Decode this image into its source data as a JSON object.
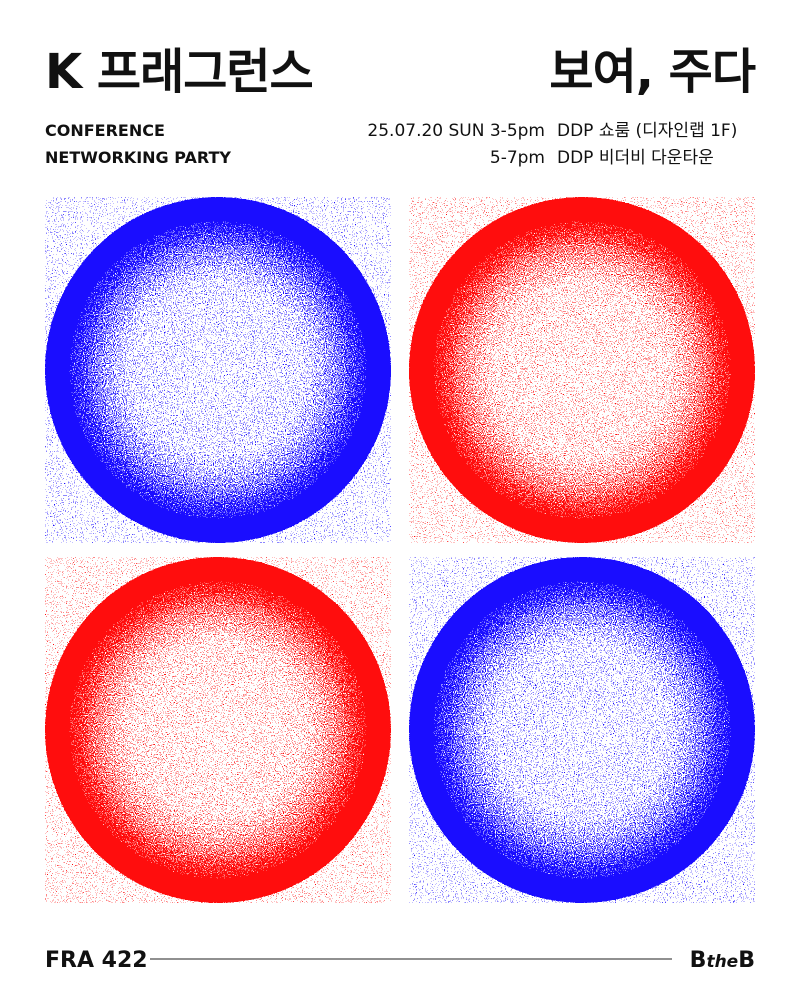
{
  "header": {
    "title_left": "K 프래그런스",
    "title_right": "보여, 주다"
  },
  "events": [
    {
      "label": "CONFERENCE",
      "when": "25.07.20 SUN 3-5pm",
      "where": "DDP 쇼룸 (디자인랩 1F)"
    },
    {
      "label": "NETWORKING PARTY",
      "when": "5-7pm",
      "where": "DDP 비더비 다운타운"
    }
  ],
  "footer": {
    "left": "FRA 422",
    "logo_parts": [
      "B",
      "the",
      "B"
    ]
  }
}
